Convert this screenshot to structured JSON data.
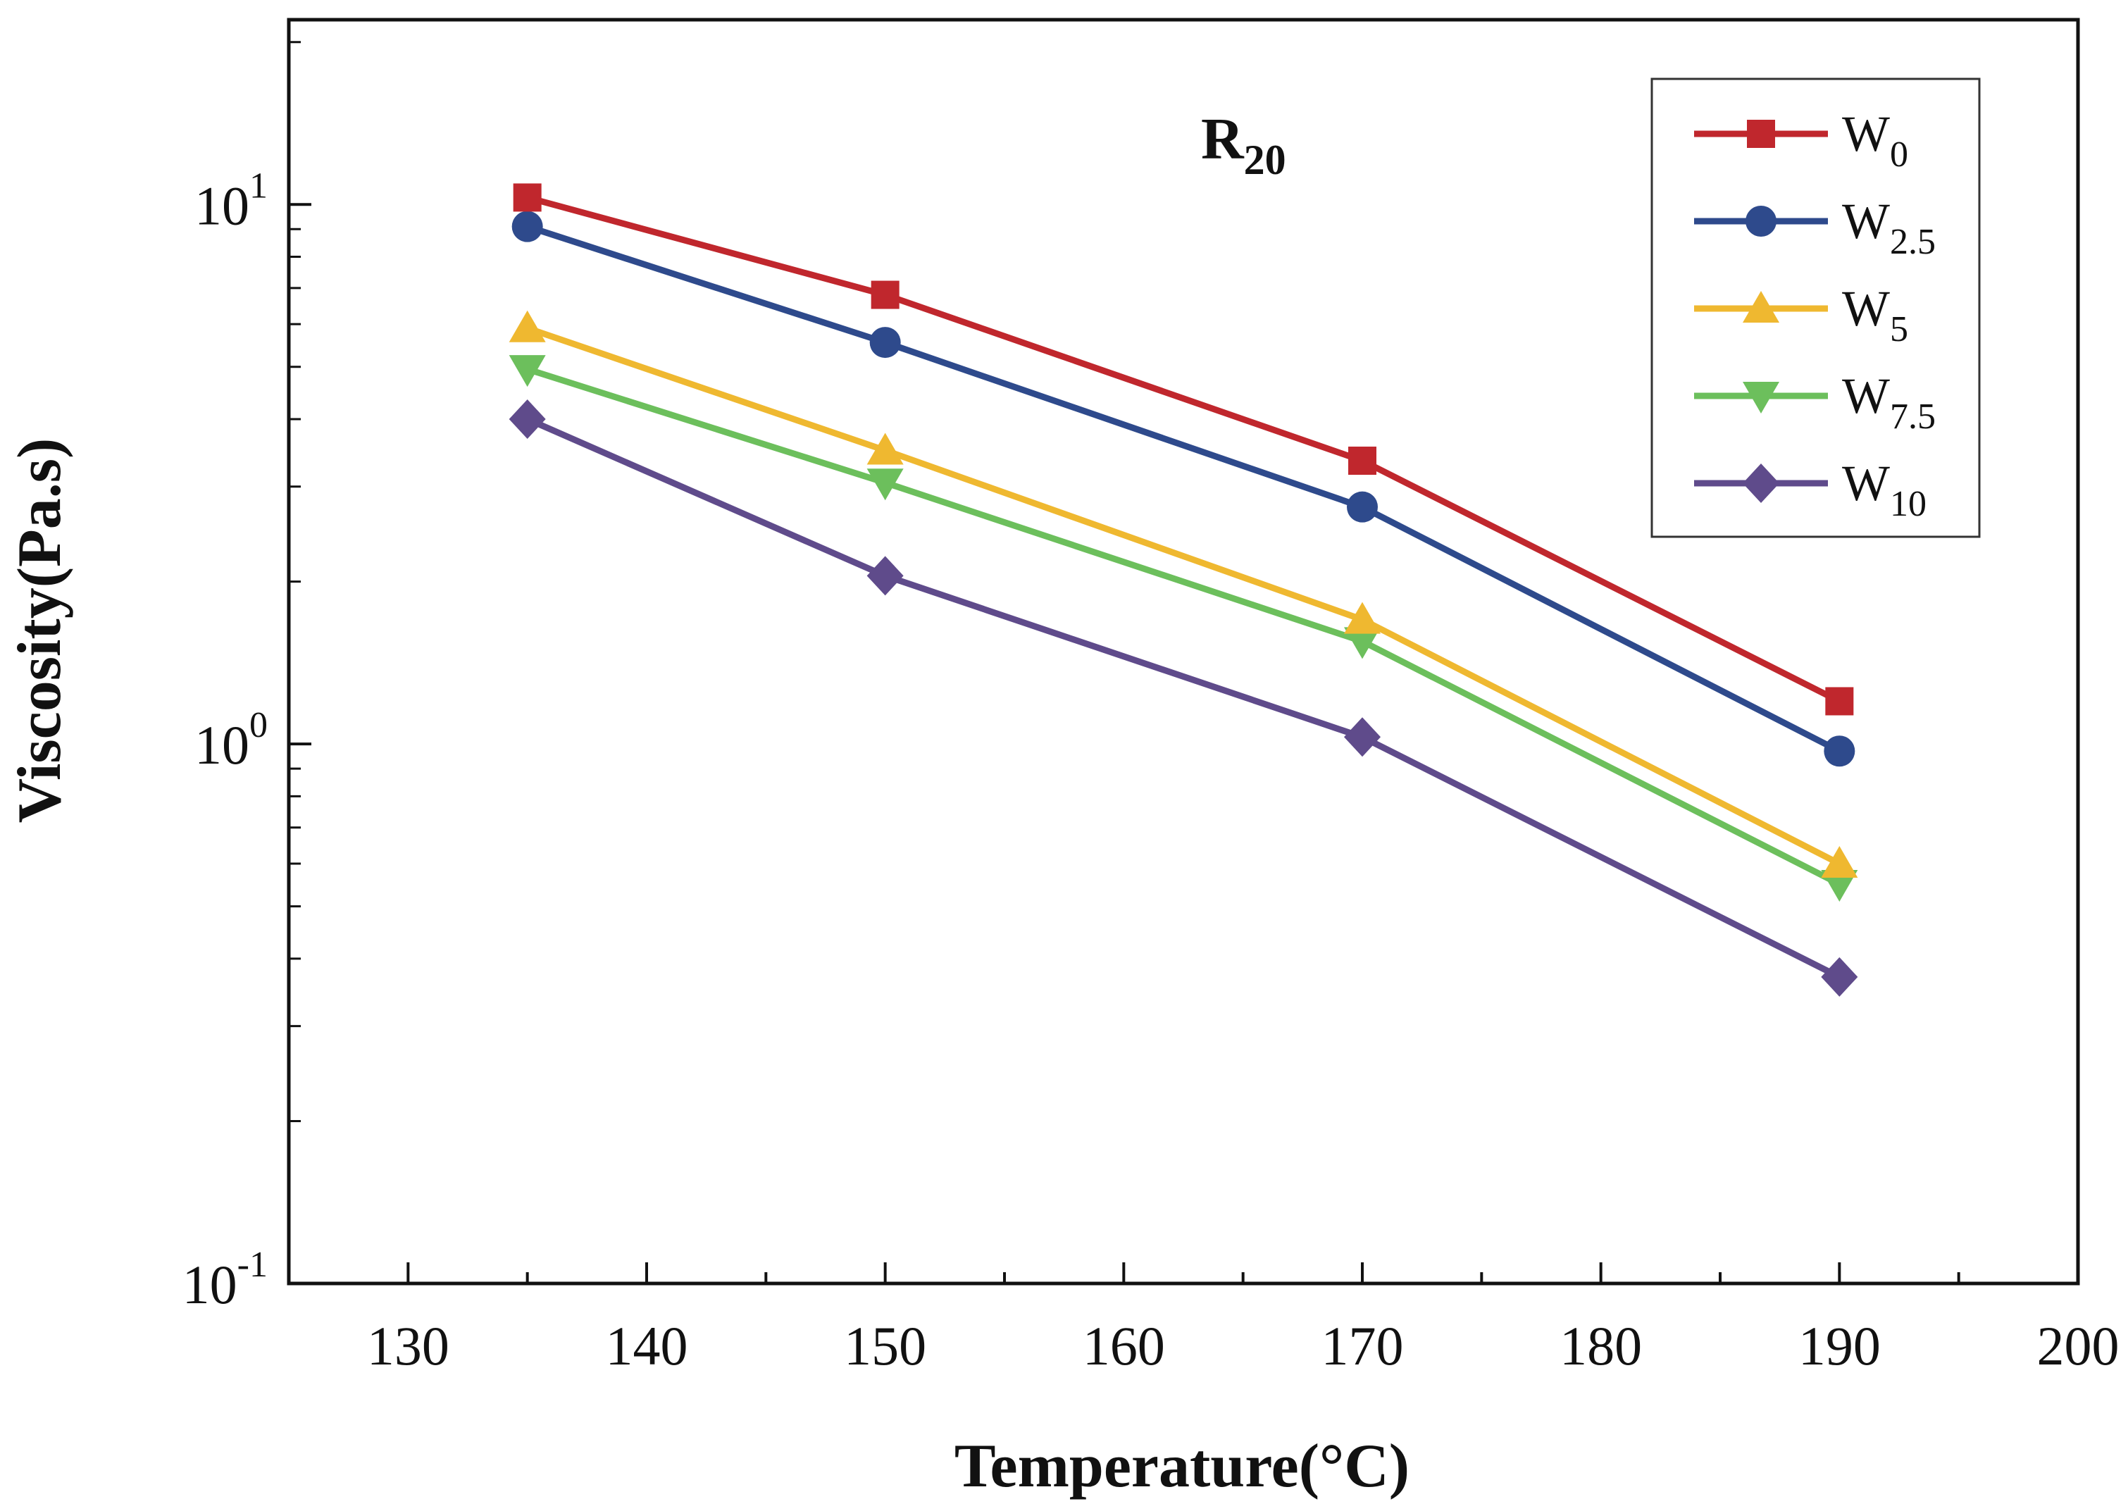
{
  "chart_data": {
    "type": "line",
    "title": "",
    "annotation": {
      "base": "R",
      "sub": "20"
    },
    "xlabel": "Temperature(°C)",
    "ylabel": "Viscosity(Pa.s)",
    "xlim": [
      125,
      200
    ],
    "ylim": [
      0.1,
      22
    ],
    "yscale": "log",
    "x_ticks": [
      130,
      140,
      150,
      160,
      170,
      180,
      190,
      200
    ],
    "y_ticks": [
      {
        "value": 0.1,
        "base": "10",
        "exp": "-1"
      },
      {
        "value": 1,
        "base": "10",
        "exp": "0"
      },
      {
        "value": 10,
        "base": "10",
        "exp": "1"
      }
    ],
    "grid": false,
    "legend": "top-right",
    "x": [
      135,
      150,
      170,
      190
    ],
    "series": [
      {
        "key": "w0",
        "name_base": "W",
        "name_sub": "0",
        "color": "#c0272d",
        "marker": "square",
        "values": [
          10.3,
          6.8,
          3.35,
          1.2
        ]
      },
      {
        "key": "w25",
        "name_base": "W",
        "name_sub": "2.5",
        "color": "#2e4a8c",
        "marker": "circle",
        "values": [
          9.1,
          5.55,
          2.75,
          0.97
        ]
      },
      {
        "key": "w5",
        "name_base": "W",
        "name_sub": "5",
        "color": "#efb830",
        "marker": "triangle-up",
        "values": [
          5.9,
          3.5,
          1.7,
          0.6
        ]
      },
      {
        "key": "w75",
        "name_base": "W",
        "name_sub": "7.5",
        "color": "#6cbf5c",
        "marker": "triangle-down",
        "values": [
          4.95,
          3.05,
          1.55,
          0.55
        ]
      },
      {
        "key": "w10",
        "name_base": "W",
        "name_sub": "10",
        "color": "#5f4b8b",
        "marker": "diamond",
        "values": [
          4.0,
          2.05,
          1.03,
          0.37
        ]
      }
    ]
  }
}
